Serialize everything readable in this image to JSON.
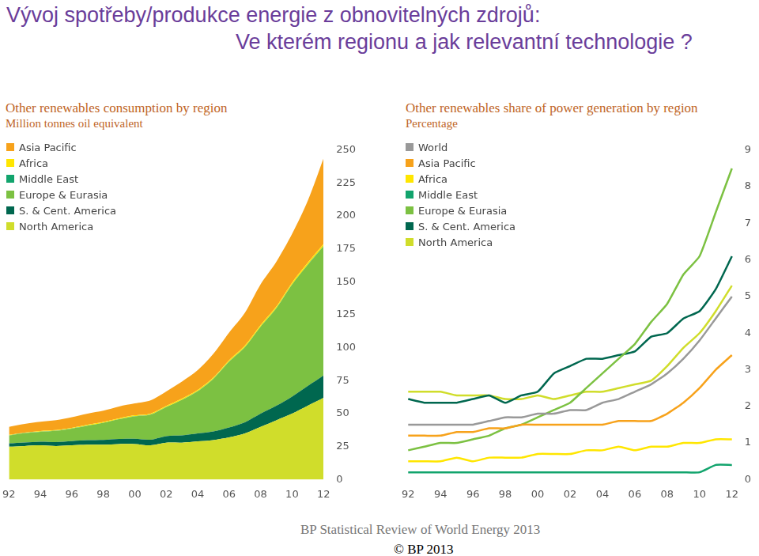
{
  "heading": [
    "Vývoj spotřeby/produkce energie z obnovitelných zdrojů:",
    "Ve kterém regionu a jak relevantní technologie ?"
  ],
  "footer": [
    "BP Statistical Review of World Energy  2013",
    "© BP 2013"
  ],
  "chart_data": [
    {
      "type": "area",
      "stacked": true,
      "title": "Other renewables consumption by region",
      "subtitle": "Million tonnes oil equivalent",
      "legend": "top-left",
      "grid": false,
      "categories": [
        "92",
        null,
        "94",
        null,
        "96",
        null,
        "98",
        null,
        "00",
        null,
        "02",
        null,
        "04",
        null,
        "06",
        null,
        "08",
        null,
        "10",
        null,
        "12"
      ],
      "ylim": [
        0,
        250
      ],
      "yticks": [
        0,
        25,
        50,
        75,
        100,
        125,
        150,
        175,
        200,
        225,
        250
      ],
      "series": [
        {
          "name": "Asia Pacific",
          "color": "#f7a21b",
          "values": [
            6,
            6.5,
            7,
            7.5,
            8,
            8.5,
            8.5,
            9,
            9,
            10,
            11,
            13,
            15,
            18,
            21,
            25,
            31,
            34,
            37,
            47,
            65
          ]
        },
        {
          "name": "Africa",
          "color": "#ffe600",
          "values": [
            0.4,
            0.4,
            0.5,
            0.5,
            0.5,
            0.6,
            0.6,
            0.6,
            0.7,
            0.7,
            0.8,
            0.8,
            0.9,
            0.9,
            1.0,
            1.0,
            1.1,
            1.2,
            1.3,
            1.4,
            1.5
          ]
        },
        {
          "name": "Middle East",
          "color": "#12a46d",
          "values": [
            0.1,
            0.1,
            0.1,
            0.1,
            0.1,
            0.1,
            0.1,
            0.1,
            0.1,
            0.1,
            0.1,
            0.1,
            0.1,
            0.1,
            0.1,
            0.1,
            0.1,
            0.1,
            0.1,
            0.2,
            0.3
          ]
        },
        {
          "name": "Europe & Eurasia",
          "color": "#7cc142",
          "values": [
            6,
            7,
            7.5,
            8.5,
            9.5,
            11,
            13,
            15,
            17,
            19,
            22,
            27,
            32,
            40,
            50,
            57,
            66,
            74,
            85,
            92,
            98
          ]
        },
        {
          "name": "S. & Cent. America",
          "color": "#00674f",
          "values": [
            2.5,
            2.7,
            2.8,
            3,
            3.2,
            3.4,
            3.6,
            3.8,
            4,
            4.3,
            5,
            5.5,
            6,
            6.5,
            7.5,
            8.5,
            10,
            11,
            13,
            15,
            17
          ]
        },
        {
          "name": "North America",
          "color": "#d0dd2b",
          "values": [
            25,
            25.5,
            26,
            25.5,
            26,
            26.5,
            26.5,
            27,
            27,
            26,
            28,
            28,
            29,
            30,
            32,
            35,
            40,
            45,
            50,
            56,
            62
          ]
        }
      ]
    },
    {
      "type": "line",
      "title": "Other renewables share of power generation by region",
      "subtitle": "Percentage",
      "legend": "top-left",
      "grid": false,
      "categories": [
        "92",
        null,
        "94",
        null,
        "96",
        null,
        "98",
        null,
        "00",
        null,
        "02",
        null,
        "04",
        null,
        "06",
        null,
        "08",
        null,
        "10",
        null,
        "12"
      ],
      "ylim": [
        0,
        9
      ],
      "yticks": [
        0,
        1,
        2,
        3,
        4,
        5,
        6,
        7,
        8,
        9
      ],
      "series": [
        {
          "name": "World",
          "color": "#999999",
          "values": [
            1.5,
            1.5,
            1.5,
            1.5,
            1.5,
            1.6,
            1.7,
            1.7,
            1.8,
            1.8,
            1.9,
            1.9,
            2.1,
            2.2,
            2.4,
            2.6,
            2.9,
            3.3,
            3.8,
            4.4,
            5.0
          ]
        },
        {
          "name": "Asia Pacific",
          "color": "#f7a21b",
          "values": [
            1.2,
            1.2,
            1.2,
            1.3,
            1.3,
            1.4,
            1.4,
            1.5,
            1.5,
            1.5,
            1.5,
            1.5,
            1.5,
            1.6,
            1.6,
            1.6,
            1.8,
            2.1,
            2.5,
            3.0,
            3.4
          ]
        },
        {
          "name": "Africa",
          "color": "#ffe600",
          "values": [
            0.5,
            0.5,
            0.5,
            0.6,
            0.5,
            0.6,
            0.6,
            0.6,
            0.7,
            0.7,
            0.7,
            0.8,
            0.8,
            0.9,
            0.8,
            0.9,
            0.9,
            1.0,
            1.0,
            1.1,
            1.1
          ]
        },
        {
          "name": "Middle East",
          "color": "#12a46d",
          "values": [
            0.2,
            0.2,
            0.2,
            0.2,
            0.2,
            0.2,
            0.2,
            0.2,
            0.2,
            0.2,
            0.2,
            0.2,
            0.2,
            0.2,
            0.2,
            0.2,
            0.2,
            0.2,
            0.2,
            0.4,
            0.4
          ]
        },
        {
          "name": "Europe & Eurasia",
          "color": "#7cc142",
          "values": [
            0.8,
            0.9,
            1.0,
            1.0,
            1.1,
            1.2,
            1.4,
            1.5,
            1.7,
            1.9,
            2.1,
            2.5,
            2.9,
            3.3,
            3.7,
            4.3,
            4.8,
            5.6,
            6.1,
            7.3,
            8.5
          ]
        },
        {
          "name": "S. & Cent. America",
          "color": "#00674f",
          "values": [
            2.2,
            2.1,
            2.1,
            2.1,
            2.2,
            2.3,
            2.1,
            2.3,
            2.4,
            2.9,
            3.1,
            3.3,
            3.3,
            3.4,
            3.5,
            3.9,
            4.0,
            4.4,
            4.6,
            5.2,
            6.1
          ]
        },
        {
          "name": "North America",
          "color": "#d0dd2b",
          "values": [
            2.4,
            2.4,
            2.4,
            2.3,
            2.3,
            2.3,
            2.2,
            2.2,
            2.3,
            2.2,
            2.3,
            2.4,
            2.4,
            2.5,
            2.6,
            2.7,
            3.1,
            3.6,
            4.0,
            4.6,
            5.3
          ]
        }
      ]
    }
  ]
}
